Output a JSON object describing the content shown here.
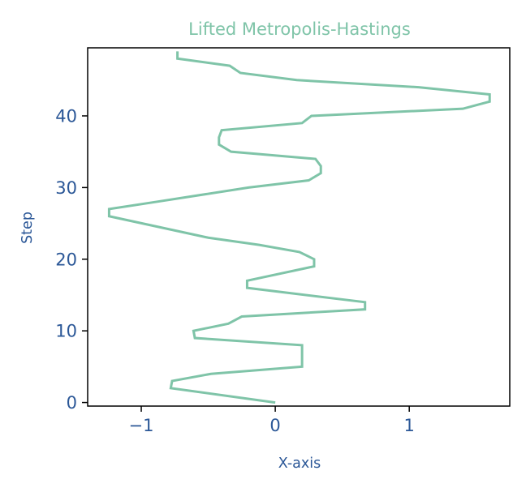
{
  "chart_data": {
    "type": "line",
    "title": "Lifted Metropolis-Hastings",
    "xlabel": "X-axis",
    "ylabel": "Step",
    "xlim": [
      -1.4,
      1.75
    ],
    "ylim": [
      -0.5,
      49.5
    ],
    "x_ticks": [
      -1,
      0,
      1
    ],
    "x_tick_labels": [
      "−1",
      "0",
      "1"
    ],
    "y_ticks": [
      0,
      10,
      20,
      30,
      40
    ],
    "y_tick_labels": [
      "0",
      "10",
      "20",
      "30",
      "40"
    ],
    "grid": false,
    "legend": false,
    "colors": {
      "line": "#7fc4a8",
      "title": "#7fc4a8",
      "axis_text": "#2b5797",
      "frame": "#000000"
    },
    "series": [
      {
        "x": [
          0.0,
          -0.78,
          -0.77,
          -0.48,
          0.2,
          0.2,
          -0.6,
          -0.61,
          -0.35,
          -0.25,
          0.67,
          0.67,
          -0.21,
          -0.21,
          0.29,
          0.29,
          0.18,
          -0.12,
          -0.5,
          -1.24,
          -1.24,
          -0.89,
          -0.2,
          0.25,
          0.34,
          0.34,
          0.3,
          -0.33,
          -0.42,
          -0.42,
          -0.4,
          0.2,
          0.27,
          1.4,
          1.6,
          1.6,
          1.07,
          0.16,
          -0.26,
          -0.34,
          -0.73,
          -0.73
        ],
        "y": [
          0,
          2,
          3,
          4,
          5,
          8,
          9,
          10,
          11,
          12,
          13,
          14,
          16,
          17,
          19,
          20,
          21,
          22,
          23,
          26,
          27,
          28,
          30,
          31,
          32,
          33,
          34,
          35,
          36,
          37,
          38,
          39,
          40,
          41,
          42,
          43,
          44,
          45,
          46,
          47,
          48,
          49
        ]
      }
    ]
  }
}
